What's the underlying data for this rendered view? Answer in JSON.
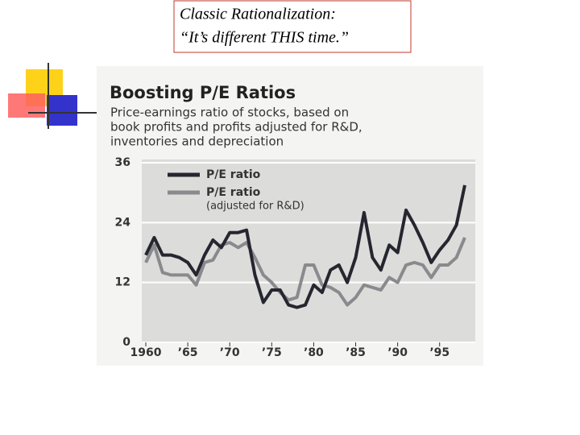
{
  "slide_title": [
    "Classic Rationalization:",
    "“It’s different THIS time.”"
  ],
  "chart_data": {
    "type": "line",
    "title": "Boosting P/E Ratios",
    "subtitle": [
      "Price-earnings ratio of stocks, based on",
      "book profits and profits adjusted for R&D,",
      "inventories and depreciation"
    ],
    "x": [
      1960,
      1961,
      1962,
      1963,
      1964,
      1965,
      1966,
      1967,
      1968,
      1969,
      1970,
      1971,
      1972,
      1973,
      1974,
      1975,
      1976,
      1977,
      1978,
      1979,
      1980,
      1981,
      1982,
      1983,
      1984,
      1985,
      1986,
      1987,
      1988,
      1989,
      1990,
      1991,
      1992,
      1993,
      1994,
      1995,
      1996,
      1997,
      1998
    ],
    "series": [
      {
        "name": "P/E ratio",
        "color": "#262630",
        "values": [
          17.5,
          21,
          17.5,
          17.5,
          17,
          16,
          13.5,
          17.5,
          20.5,
          19,
          22,
          22,
          22.5,
          13.5,
          8,
          10.5,
          10.5,
          7.5,
          7,
          7.5,
          11.5,
          10,
          14.5,
          15.5,
          12,
          17,
          26,
          17,
          14.5,
          19.5,
          18,
          26.5,
          23.5,
          20,
          16,
          18.5,
          20.5,
          23.5,
          31.5
        ]
      },
      {
        "name": "P/E ratio",
        "color": "#8a8a8e",
        "values": [
          16,
          19.5,
          14,
          13.5,
          13.5,
          13.5,
          11.5,
          16,
          16.5,
          19.5,
          20,
          19,
          20,
          17,
          13.5,
          12,
          10,
          8.5,
          9,
          15.5,
          15.5,
          11.5,
          11,
          10,
          7.5,
          9,
          11.5,
          11,
          10.5,
          13,
          12,
          15.5,
          16,
          15.5,
          13,
          15.5,
          15.5,
          17,
          21
        ]
      }
    ],
    "legend_note": "(adjusted for R&D)",
    "xlim": [
      1960,
      1998
    ],
    "xticks": [
      1960,
      {
        "value": 1965,
        "label": "’65"
      },
      {
        "value": 1970,
        "label": "’70"
      },
      {
        "value": 1975,
        "label": "’75"
      },
      {
        "value": 1980,
        "label": "’80"
      },
      {
        "value": 1985,
        "label": "’85"
      },
      {
        "value": 1990,
        "label": "’90"
      },
      {
        "value": 1995,
        "label": "’95"
      }
    ],
    "ylim": [
      0,
      36
    ],
    "yticks": [
      0,
      12,
      24,
      36
    ],
    "grid": true
  }
}
